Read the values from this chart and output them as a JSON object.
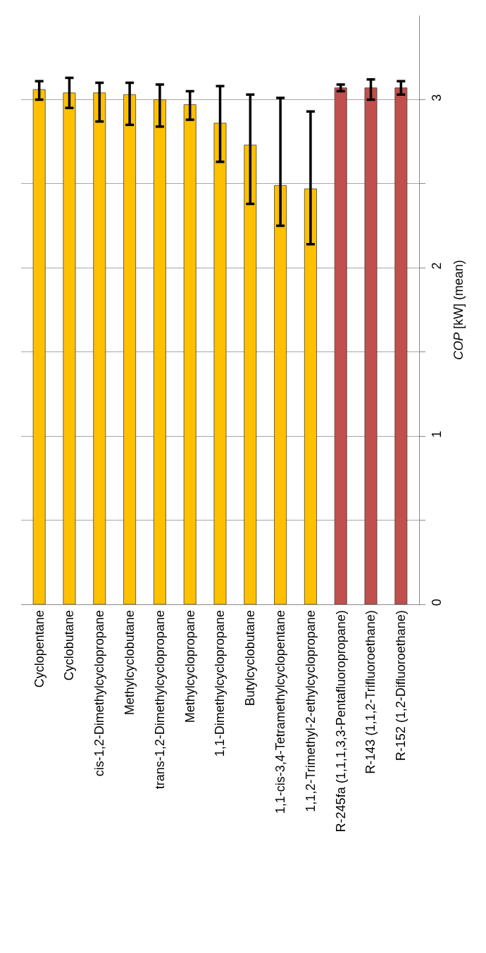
{
  "chart_data": {
    "type": "bar",
    "ylabel": "COP [kW] (mean)",
    "categories": [
      "Cyclopentane",
      "Cyclobutane",
      "cis-1,2-Dimethylcyclopropane",
      "Methylcyclobutane",
      "trans-1,2-Dimethylcyclopropane",
      "Methylcyclopropane",
      "1,1-Dimethylcyclopropane",
      "Butylcyclobutane",
      "1,1-cis-3,4-Tetramethylcyclopentane",
      "1,1,2-Trimethyl-2-ethylcyclopropane",
      "R-245fa (1,1,1,3,3-Pentafluoropropane)",
      "R-143 (1,1,2-Trifluoroethane)",
      "R-152 (1,2-Difluoroethane)"
    ],
    "values": [
      3.06,
      3.04,
      3.04,
      3.03,
      3.0,
      2.97,
      2.86,
      2.73,
      2.49,
      2.47,
      3.07,
      3.07,
      3.07
    ],
    "colors": [
      "#ffc000",
      "#ffc000",
      "#ffc000",
      "#ffc000",
      "#ffc000",
      "#ffc000",
      "#ffc000",
      "#ffc000",
      "#ffc000",
      "#ffc000",
      "#c0504d",
      "#c0504d",
      "#c0504d"
    ],
    "errors": [
      [
        3.0,
        3.11
      ],
      [
        2.95,
        3.13
      ],
      [
        2.87,
        3.1
      ],
      [
        2.85,
        3.1
      ],
      [
        2.84,
        3.09
      ],
      [
        2.88,
        3.05
      ],
      [
        2.63,
        3.08
      ],
      [
        2.38,
        3.03
      ],
      [
        2.25,
        3.01
      ],
      [
        2.14,
        2.93
      ],
      [
        3.05,
        3.09
      ],
      [
        3.0,
        3.12
      ],
      [
        3.03,
        3.11
      ]
    ],
    "ylim": [
      0,
      3.5
    ],
    "yticks": [
      0,
      {
        "value": 0.5,
        "label": null
      },
      1,
      {
        "value": 1.5,
        "label": null
      },
      2,
      {
        "value": 2.5,
        "label": null
      },
      3
    ],
    "grid": "y"
  }
}
